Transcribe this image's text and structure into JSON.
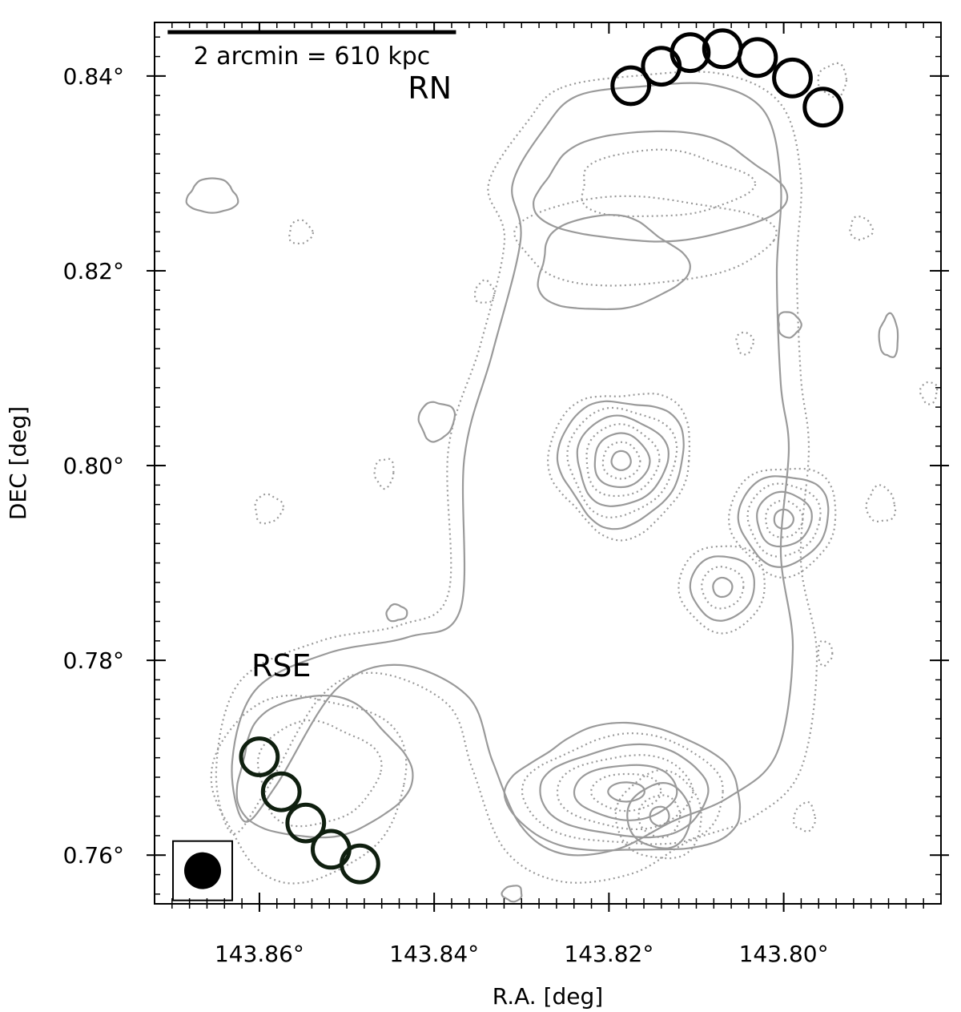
{
  "chart_data": {
    "type": "contour",
    "xlabel": "R.A. [deg]",
    "ylabel": "DEC [deg]",
    "xlim": [
      143.872,
      143.782
    ],
    "ylim": [
      0.755,
      0.8455
    ],
    "x_inverted": true,
    "x_ticks": [
      {
        "value": 143.86,
        "label": "143.86°"
      },
      {
        "value": 143.84,
        "label": "143.84°"
      },
      {
        "value": 143.82,
        "label": "143.82°"
      },
      {
        "value": 143.8,
        "label": "143.80°"
      }
    ],
    "y_ticks": [
      {
        "value": 0.76,
        "label": "0.76°"
      },
      {
        "value": 0.78,
        "label": "0.78°"
      },
      {
        "value": 0.8,
        "label": "0.80°"
      },
      {
        "value": 0.82,
        "label": "0.82°"
      },
      {
        "value": 0.84,
        "label": "0.84°"
      }
    ],
    "scale_bar": {
      "label": "2 arcmin = 610 kpc",
      "ra_start": 143.8705,
      "ra_end": 143.8375,
      "dec": 0.8445
    },
    "annotations": [
      {
        "text": "RN",
        "ra": 143.8405,
        "dec": 0.8395
      },
      {
        "text": "RSE",
        "ra": 143.8575,
        "dec": 0.7795
      }
    ],
    "regions": [
      {
        "name": "RN",
        "color": "#000000",
        "radius_deg": 0.0021,
        "centers": [
          {
            "ra": 143.8175,
            "dec": 0.839
          },
          {
            "ra": 143.814,
            "dec": 0.841
          },
          {
            "ra": 143.8107,
            "dec": 0.8424
          },
          {
            "ra": 143.807,
            "dec": 0.8428
          },
          {
            "ra": 143.803,
            "dec": 0.8419
          },
          {
            "ra": 143.799,
            "dec": 0.8398
          },
          {
            "ra": 143.7955,
            "dec": 0.8368
          }
        ]
      },
      {
        "name": "RSE",
        "color": "#0f1f0f",
        "radius_deg": 0.0021,
        "centers": [
          {
            "ra": 143.86,
            "dec": 0.7701
          },
          {
            "ra": 143.8575,
            "dec": 0.7665
          },
          {
            "ra": 143.8547,
            "dec": 0.7633
          },
          {
            "ra": 143.8518,
            "dec": 0.7606
          },
          {
            "ra": 143.8485,
            "dec": 0.7591
          }
        ]
      }
    ],
    "beam": {
      "ra": 143.8665,
      "dec": 0.7584
    },
    "sources": [
      {
        "name": "source-a",
        "ra": 143.8186,
        "dec": 0.8005,
        "levels": 8
      },
      {
        "name": "source-b",
        "ra": 143.8,
        "dec": 0.7945,
        "levels": 6
      },
      {
        "name": "source-c",
        "ra": 143.807,
        "dec": 0.7875,
        "levels": 4
      },
      {
        "name": "source-d",
        "ra": 143.818,
        "dec": 0.7665,
        "levels": 7
      },
      {
        "name": "source-e",
        "ra": 143.8142,
        "dec": 0.764,
        "levels": 4
      }
    ],
    "line_styles": [
      "solid",
      "dotted"
    ],
    "colors": {
      "contours": "#9a9a9a",
      "axes": "#000000"
    }
  }
}
